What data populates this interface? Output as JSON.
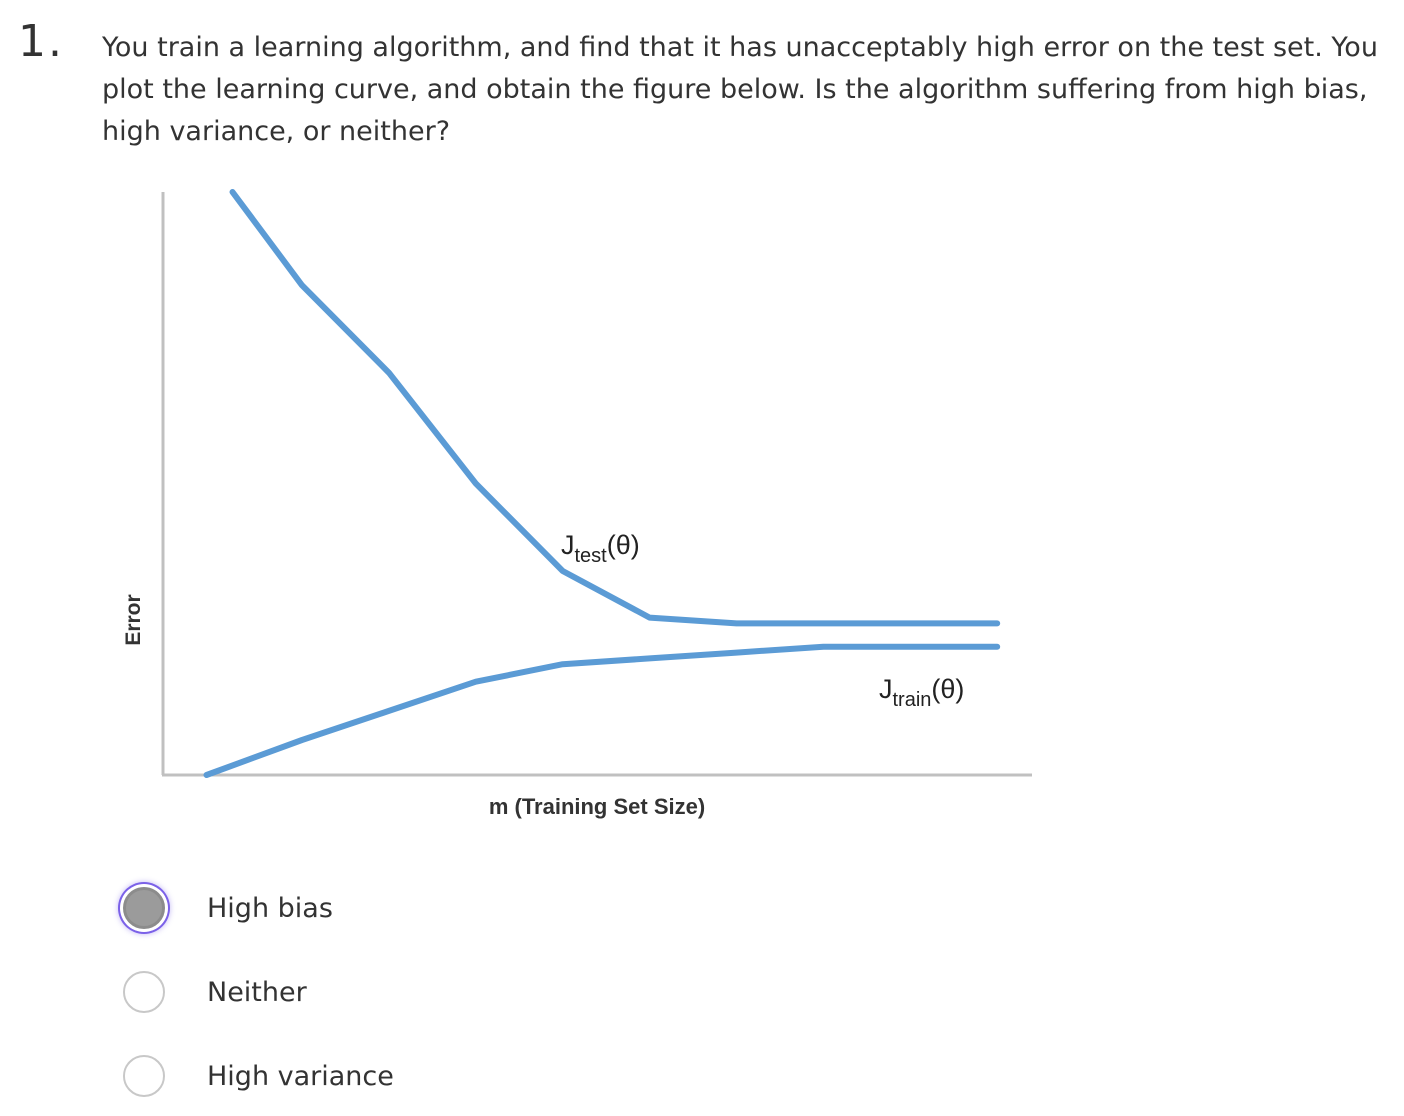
{
  "question": {
    "number": "1.",
    "text": "You train a learning algorithm, and find that it has unacceptably high error on the test set. You plot the learning curve, and obtain the figure below. Is the algorithm suffering from high bias, high variance, or neither?"
  },
  "figure": {
    "y_axis_label": "Error",
    "x_axis_label": "m (Training Set Size)",
    "test_curve_label": {
      "main": "J",
      "subscript": "test",
      "arg": "(θ)"
    },
    "train_curve_label": {
      "main": "J",
      "subscript": "train",
      "arg": "(θ)"
    },
    "line_color": "#5b9bd5",
    "axis_color": "#c0c0c0"
  },
  "chart_data": {
    "type": "line",
    "xlabel": "m (Training Set Size)",
    "ylabel": "Error",
    "xlim": [
      0,
      10
    ],
    "ylim": [
      0,
      10
    ],
    "grid": false,
    "series": [
      {
        "name": "Jtest(θ)",
        "x": [
          0.8,
          1.6,
          2.6,
          3.6,
          4.6,
          5.6,
          6.6,
          7.6,
          8.6,
          9.6
        ],
        "y": [
          10.0,
          8.4,
          6.9,
          5.0,
          3.5,
          2.7,
          2.6,
          2.6,
          2.6,
          2.6
        ]
      },
      {
        "name": "Jtrain(θ)",
        "x": [
          0.5,
          1.6,
          2.6,
          3.6,
          4.6,
          5.6,
          6.6,
          7.6,
          8.6,
          9.6
        ],
        "y": [
          0.0,
          0.6,
          1.1,
          1.6,
          1.9,
          2.0,
          2.1,
          2.2,
          2.2,
          2.2
        ]
      }
    ]
  },
  "answer_options": [
    {
      "label": "High bias",
      "selected": true
    },
    {
      "label": "Neither",
      "selected": false
    },
    {
      "label": "High variance",
      "selected": false
    }
  ]
}
